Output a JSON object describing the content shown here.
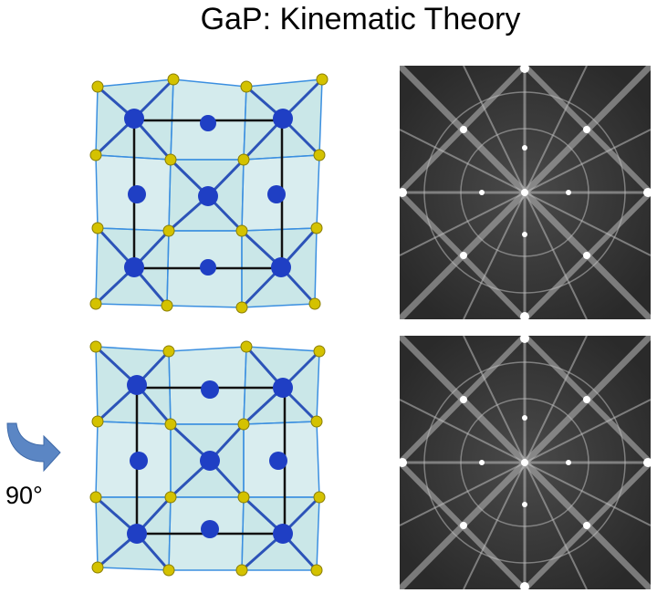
{
  "title": "GaP: Kinematic Theory",
  "rotation_label": "90°",
  "colors": {
    "ga_atom": "#1f3fc4",
    "p_atom": "#d4c200",
    "polyhedra": "#9fd3d6",
    "polyhedra_edge": "#3b8fe0",
    "unit_cell": "#111111",
    "arrow": "#5b86c4",
    "pattern_bg": "#3c3c3c"
  },
  "icons": {
    "rotation": "curved-rotate-arrow-icon"
  }
}
